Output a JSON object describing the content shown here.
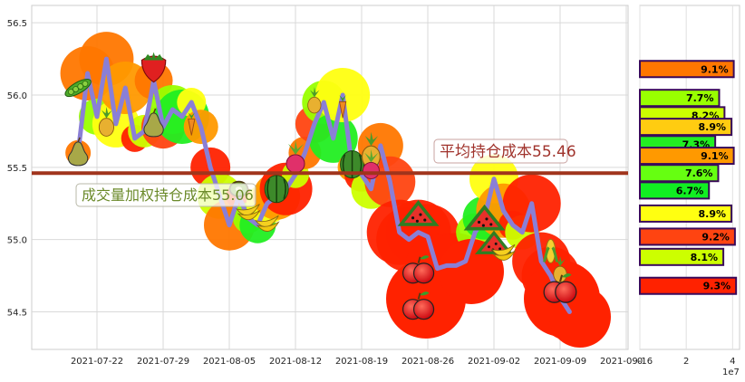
{
  "chart_data": [
    {
      "type": "scatter",
      "title": "",
      "xlabel": "",
      "ylabel": "",
      "x_ticks": [
        "2021-07-22",
        "2021-07-29",
        "2021-08-05",
        "2021-08-12",
        "2021-08-19",
        "2021-08-26",
        "2021-09-02",
        "2021-09-09",
        "2021-09-16"
      ],
      "y_ticks": [
        54.5,
        55.0,
        55.5,
        56.0,
        56.5
      ],
      "ylim": [
        54.24,
        56.62
      ],
      "grid": true,
      "avg_cost_line": 55.46,
      "avg_cost_label": "平均持仓成本55.46",
      "vwap_label": "成交量加权持仓成本55.06",
      "vwap_line": 55.06,
      "series": [
        {
          "x": [
            "2021-07-20",
            "2021-07-21",
            "2021-07-22",
            "2021-07-23",
            "2021-07-24",
            "2021-07-25",
            "2021-07-26",
            "2021-07-27",
            "2021-07-28",
            "2021-07-29",
            "2021-07-30",
            "2021-07-31",
            "2021-08-01",
            "2021-08-02",
            "2021-08-03",
            "2021-08-04",
            "2021-08-05",
            "2021-08-06",
            "2021-08-07",
            "2021-08-08",
            "2021-08-09",
            "2021-08-10",
            "2021-08-11",
            "2021-08-12",
            "2021-08-13",
            "2021-08-14",
            "2021-08-15",
            "2021-08-16",
            "2021-08-17",
            "2021-08-18",
            "2021-08-19",
            "2021-08-20",
            "2021-08-21",
            "2021-08-22",
            "2021-08-23",
            "2021-08-24",
            "2021-08-25",
            "2021-08-26",
            "2021-08-27",
            "2021-08-28",
            "2021-08-29",
            "2021-08-30",
            "2021-08-31",
            "2021-09-01",
            "2021-09-02",
            "2021-09-03",
            "2021-09-04",
            "2021-09-05",
            "2021-09-06",
            "2021-09-07",
            "2021-09-08",
            "2021-09-09",
            "2021-09-10"
          ],
          "values": [
            55.6,
            56.15,
            55.85,
            56.25,
            55.8,
            56.05,
            55.7,
            55.75,
            56.1,
            55.78,
            55.9,
            55.85,
            55.95,
            55.78,
            55.5,
            55.3,
            55.1,
            55.3,
            55.15,
            55.1,
            55.25,
            55.3,
            55.35,
            55.45,
            55.6,
            55.8,
            55.95,
            55.7,
            56.0,
            55.5,
            55.45,
            55.35,
            55.65,
            55.4,
            55.05,
            55.0,
            55.05,
            55.02,
            54.8,
            54.82,
            54.82,
            54.85,
            55.05,
            55.15,
            55.42,
            55.2,
            55.1,
            55.05,
            55.25,
            54.85,
            54.75,
            54.6,
            54.5
          ],
          "color": "#8a7fd6"
        }
      ]
    },
    {
      "type": "bar",
      "orientation": "horizontal",
      "x_ticks": [
        "0",
        "2",
        "4"
      ],
      "x_multiplier": "1e7",
      "bars": [
        {
          "price": 56.18,
          "value": 4.05,
          "label": "9.1%",
          "color": "#ff7700"
        },
        {
          "price": 55.98,
          "value": 3.42,
          "label": "7.7%",
          "color": "#99ff00"
        },
        {
          "price": 55.86,
          "value": 3.65,
          "label": "8.2%",
          "color": "#ccff00"
        },
        {
          "price": 55.78,
          "value": 3.95,
          "label": "8.9%",
          "color": "#ffcc11"
        },
        {
          "price": 55.66,
          "value": 3.25,
          "label": "7.3%",
          "color": "#22ee22"
        },
        {
          "price": 55.58,
          "value": 4.05,
          "label": "9.1%",
          "color": "#ff9900"
        },
        {
          "price": 55.46,
          "value": 3.38,
          "label": "7.6%",
          "color": "#66ff11"
        },
        {
          "price": 55.34,
          "value": 2.98,
          "label": "6.7%",
          "color": "#11ee22"
        },
        {
          "price": 55.18,
          "value": 3.95,
          "label": "8.9%",
          "color": "#ffff11"
        },
        {
          "price": 55.02,
          "value": 4.1,
          "label": "9.2%",
          "color": "#ff4411"
        },
        {
          "price": 54.88,
          "value": 3.6,
          "label": "8.1%",
          "color": "#ccff00"
        },
        {
          "price": 54.68,
          "value": 4.15,
          "label": "9.3%",
          "color": "#ff2200"
        }
      ]
    }
  ]
}
